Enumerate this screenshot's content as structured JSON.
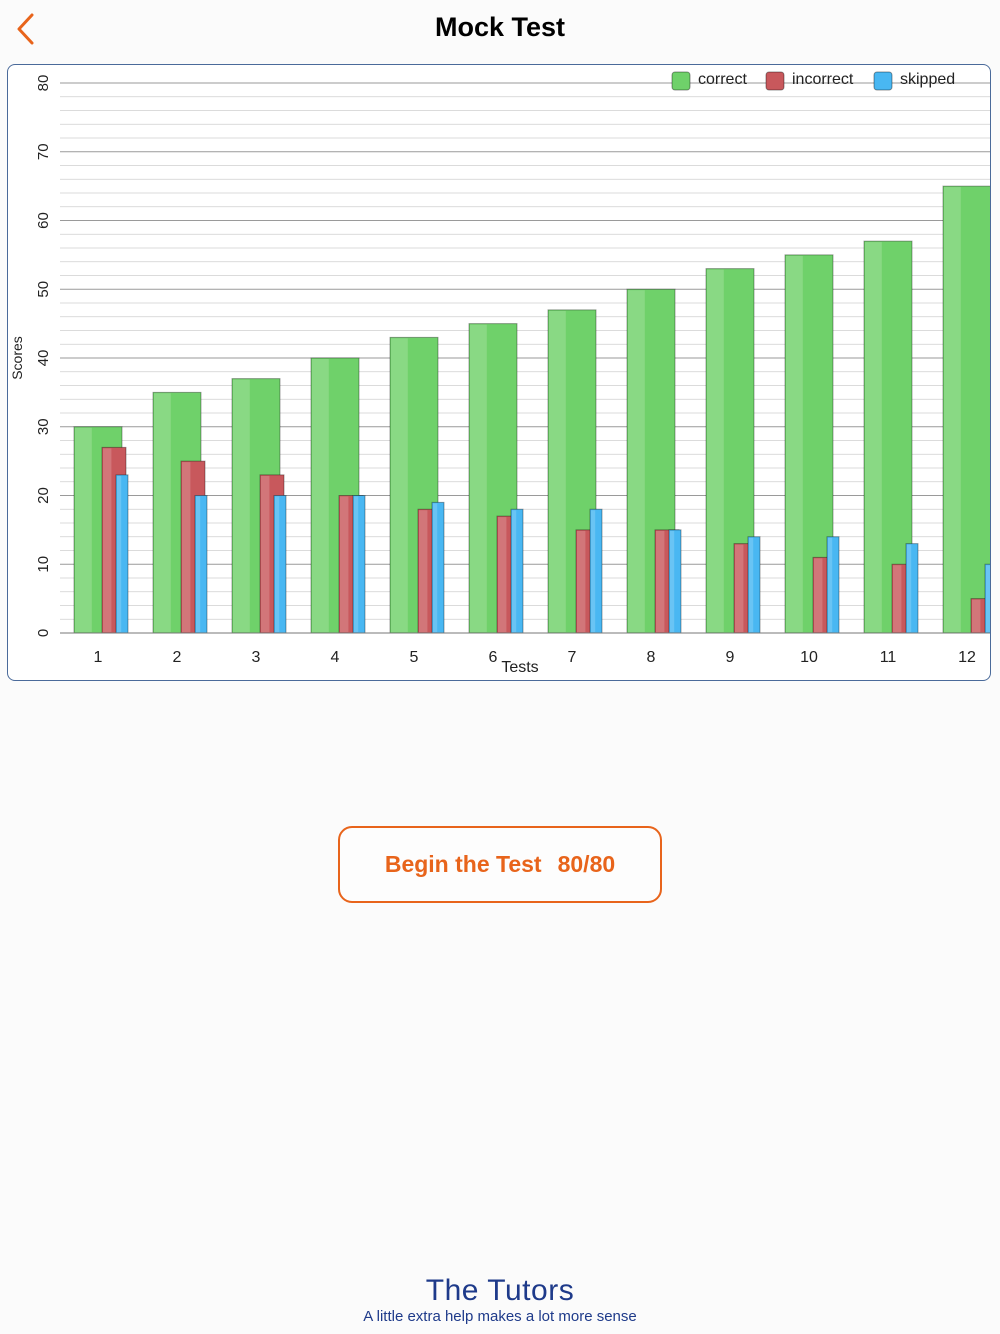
{
  "header": {
    "title": "Mock Test"
  },
  "button": {
    "label": "Begin the Test",
    "count": "80/80"
  },
  "logo": {
    "name": "The Tutors",
    "tagline": "A little extra help makes a lot more sense"
  },
  "colors": {
    "accent": "#e8641b",
    "correct": "#6fd16a",
    "incorrect": "#c8585c",
    "skipped": "#49b7f2",
    "brand": "#1e3a8a"
  },
  "chart_data": {
    "type": "bar",
    "title": "",
    "xlabel": "Tests",
    "ylabel": "Scores",
    "ylim": [
      0,
      80
    ],
    "yticks": [
      0,
      10,
      20,
      30,
      40,
      50,
      60,
      70,
      80
    ],
    "grid": true,
    "legend_position": "top-right",
    "categories": [
      "1",
      "2",
      "3",
      "4",
      "5",
      "6",
      "7",
      "8",
      "9",
      "10",
      "11",
      "12"
    ],
    "series": [
      {
        "name": "correct",
        "color": "#6fd16a",
        "values": [
          30,
          35,
          37,
          40,
          43,
          45,
          47,
          50,
          53,
          55,
          57,
          65
        ]
      },
      {
        "name": "incorrect",
        "color": "#c8585c",
        "values": [
          27,
          25,
          23,
          20,
          18,
          17,
          15,
          15,
          13,
          11,
          10,
          5
        ]
      },
      {
        "name": "skipped",
        "color": "#49b7f2",
        "values": [
          23,
          20,
          20,
          20,
          19,
          18,
          18,
          15,
          14,
          14,
          13,
          10
        ]
      }
    ]
  }
}
